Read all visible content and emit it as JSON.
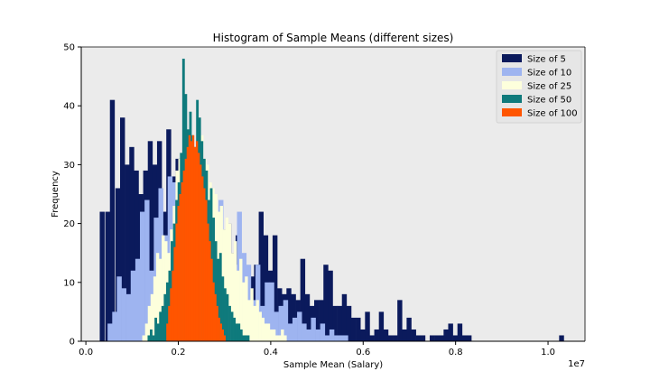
{
  "chart_data": {
    "type": "histogram",
    "title": "Histogram of Sample Means (different sizes)",
    "xlabel": "Sample Mean (Salary)",
    "ylabel": "Frequency",
    "x_offset_label": "1e7",
    "x_scale": 10000000,
    "xlim": [
      -0.01,
      1.08
    ],
    "ylim": [
      0,
      50
    ],
    "x_ticks": [
      0.0,
      0.2,
      0.4,
      0.6,
      0.8,
      1.0
    ],
    "x_tick_labels": [
      "0.0",
      "0.2",
      "0.4",
      "0.6",
      "0.8",
      "1.0"
    ],
    "y_ticks": [
      0,
      10,
      20,
      30,
      40,
      50
    ],
    "y_tick_labels": [
      "0",
      "10",
      "20",
      "30",
      "40",
      "50"
    ],
    "grid": false,
    "legend_position": "top-right",
    "background": "#ebebeb",
    "series": [
      {
        "name": "Size of 5",
        "color": "#0b1a5c",
        "bins": [
          [
            0.035,
            22
          ],
          [
            0.047,
            22
          ],
          [
            0.057,
            41
          ],
          [
            0.069,
            26
          ],
          [
            0.079,
            38
          ],
          [
            0.089,
            30
          ],
          [
            0.099,
            33
          ],
          [
            0.109,
            29
          ],
          [
            0.119,
            25
          ],
          [
            0.129,
            29
          ],
          [
            0.139,
            34
          ],
          [
            0.149,
            30
          ],
          [
            0.159,
            34
          ],
          [
            0.169,
            22
          ],
          [
            0.179,
            36
          ],
          [
            0.189,
            28
          ],
          [
            0.199,
            31
          ],
          [
            0.209,
            22
          ],
          [
            0.219,
            27
          ],
          [
            0.229,
            24
          ],
          [
            0.239,
            25
          ],
          [
            0.249,
            17
          ],
          [
            0.259,
            20
          ],
          [
            0.269,
            22
          ],
          [
            0.279,
            20
          ],
          [
            0.289,
            16
          ],
          [
            0.299,
            19
          ],
          [
            0.309,
            20
          ],
          [
            0.319,
            15
          ],
          [
            0.329,
            18
          ],
          [
            0.339,
            14
          ],
          [
            0.349,
            12
          ],
          [
            0.359,
            11
          ],
          [
            0.369,
            13
          ],
          [
            0.379,
            22
          ],
          [
            0.389,
            18
          ],
          [
            0.399,
            12
          ],
          [
            0.409,
            18
          ],
          [
            0.419,
            9
          ],
          [
            0.429,
            8
          ],
          [
            0.439,
            9
          ],
          [
            0.449,
            8
          ],
          [
            0.459,
            7
          ],
          [
            0.469,
            14
          ],
          [
            0.479,
            8
          ],
          [
            0.489,
            6
          ],
          [
            0.499,
            7
          ],
          [
            0.509,
            7
          ],
          [
            0.519,
            13
          ],
          [
            0.529,
            12
          ],
          [
            0.539,
            6
          ],
          [
            0.549,
            6
          ],
          [
            0.559,
            8
          ],
          [
            0.569,
            6
          ],
          [
            0.579,
            4
          ],
          [
            0.589,
            4
          ],
          [
            0.599,
            2
          ],
          [
            0.609,
            5
          ],
          [
            0.619,
            1
          ],
          [
            0.629,
            2
          ],
          [
            0.639,
            5
          ],
          [
            0.649,
            2
          ],
          [
            0.659,
            1
          ],
          [
            0.669,
            1
          ],
          [
            0.679,
            7
          ],
          [
            0.689,
            2
          ],
          [
            0.699,
            4
          ],
          [
            0.709,
            2
          ],
          [
            0.719,
            1
          ],
          [
            0.729,
            1
          ],
          [
            0.749,
            1
          ],
          [
            0.759,
            1
          ],
          [
            0.769,
            1
          ],
          [
            0.779,
            2
          ],
          [
            0.789,
            3
          ],
          [
            0.799,
            1
          ],
          [
            0.809,
            3
          ],
          [
            0.819,
            1
          ],
          [
            0.829,
            1
          ],
          [
            1.029,
            1
          ]
        ]
      },
      {
        "name": "Size of 10",
        "color": "#9eb4f0",
        "bins": [
          [
            0.052,
            3
          ],
          [
            0.062,
            5
          ],
          [
            0.072,
            11
          ],
          [
            0.082,
            9
          ],
          [
            0.092,
            8
          ],
          [
            0.102,
            12
          ],
          [
            0.112,
            14
          ],
          [
            0.122,
            22
          ],
          [
            0.132,
            24
          ],
          [
            0.142,
            12
          ],
          [
            0.152,
            21
          ],
          [
            0.162,
            26
          ],
          [
            0.172,
            18
          ],
          [
            0.182,
            28
          ],
          [
            0.192,
            27
          ],
          [
            0.202,
            24
          ],
          [
            0.212,
            31
          ],
          [
            0.222,
            27
          ],
          [
            0.232,
            29
          ],
          [
            0.242,
            21
          ],
          [
            0.252,
            26
          ],
          [
            0.262,
            22
          ],
          [
            0.272,
            17
          ],
          [
            0.282,
            20
          ],
          [
            0.292,
            24
          ],
          [
            0.302,
            14
          ],
          [
            0.312,
            12
          ],
          [
            0.322,
            13
          ],
          [
            0.332,
            22
          ],
          [
            0.342,
            15
          ],
          [
            0.352,
            13
          ],
          [
            0.362,
            7
          ],
          [
            0.372,
            13
          ],
          [
            0.382,
            6
          ],
          [
            0.392,
            10
          ],
          [
            0.402,
            10
          ],
          [
            0.412,
            5
          ],
          [
            0.422,
            6
          ],
          [
            0.432,
            7
          ],
          [
            0.442,
            3
          ],
          [
            0.452,
            4
          ],
          [
            0.462,
            5
          ],
          [
            0.472,
            3
          ],
          [
            0.482,
            2
          ],
          [
            0.492,
            4
          ],
          [
            0.502,
            2
          ],
          [
            0.512,
            3
          ],
          [
            0.522,
            1
          ],
          [
            0.532,
            2
          ],
          [
            0.542,
            1
          ],
          [
            0.552,
            1
          ],
          [
            0.562,
            1
          ]
        ]
      },
      {
        "name": "Size of 25",
        "color": "#fdffdc",
        "bins": [
          [
            0.125,
            1
          ],
          [
            0.131,
            3
          ],
          [
            0.137,
            6
          ],
          [
            0.143,
            8
          ],
          [
            0.149,
            11
          ],
          [
            0.155,
            15
          ],
          [
            0.161,
            14
          ],
          [
            0.167,
            18
          ],
          [
            0.173,
            17
          ],
          [
            0.179,
            15
          ],
          [
            0.185,
            19
          ],
          [
            0.191,
            23
          ],
          [
            0.197,
            29
          ],
          [
            0.203,
            31
          ],
          [
            0.209,
            28
          ],
          [
            0.215,
            38
          ],
          [
            0.221,
            36
          ],
          [
            0.227,
            33
          ],
          [
            0.233,
            30
          ],
          [
            0.239,
            29
          ],
          [
            0.245,
            34
          ],
          [
            0.251,
            35
          ],
          [
            0.257,
            31
          ],
          [
            0.263,
            30
          ],
          [
            0.269,
            27
          ],
          [
            0.275,
            26
          ],
          [
            0.281,
            25
          ],
          [
            0.287,
            22
          ],
          [
            0.293,
            23
          ],
          [
            0.299,
            19
          ],
          [
            0.305,
            21
          ],
          [
            0.311,
            20
          ],
          [
            0.317,
            15
          ],
          [
            0.323,
            17
          ],
          [
            0.329,
            12
          ],
          [
            0.335,
            14
          ],
          [
            0.341,
            10
          ],
          [
            0.347,
            11
          ],
          [
            0.353,
            7
          ],
          [
            0.359,
            9
          ],
          [
            0.365,
            6
          ],
          [
            0.371,
            7
          ],
          [
            0.377,
            5
          ],
          [
            0.383,
            4
          ],
          [
            0.389,
            3
          ],
          [
            0.395,
            3
          ],
          [
            0.401,
            2
          ],
          [
            0.407,
            2
          ],
          [
            0.413,
            1
          ],
          [
            0.419,
            1
          ],
          [
            0.425,
            2
          ],
          [
            0.431,
            1
          ]
        ]
      },
      {
        "name": "Size of 50",
        "color": "#0f7a7c",
        "bins": [
          [
            0.136,
            1
          ],
          [
            0.141,
            2
          ],
          [
            0.146,
            1
          ],
          [
            0.151,
            4
          ],
          [
            0.156,
            3
          ],
          [
            0.161,
            5
          ],
          [
            0.166,
            6
          ],
          [
            0.171,
            8
          ],
          [
            0.176,
            10
          ],
          [
            0.181,
            12
          ],
          [
            0.186,
            17
          ],
          [
            0.191,
            20
          ],
          [
            0.196,
            24
          ],
          [
            0.201,
            27
          ],
          [
            0.206,
            32
          ],
          [
            0.211,
            48
          ],
          [
            0.216,
            42
          ],
          [
            0.221,
            36
          ],
          [
            0.226,
            39
          ],
          [
            0.231,
            35
          ],
          [
            0.236,
            33
          ],
          [
            0.241,
            41
          ],
          [
            0.246,
            38
          ],
          [
            0.251,
            34
          ],
          [
            0.256,
            31
          ],
          [
            0.261,
            29
          ],
          [
            0.266,
            24
          ],
          [
            0.271,
            26
          ],
          [
            0.276,
            21
          ],
          [
            0.281,
            17
          ],
          [
            0.286,
            14
          ],
          [
            0.291,
            15
          ],
          [
            0.296,
            11
          ],
          [
            0.301,
            9
          ],
          [
            0.306,
            8
          ],
          [
            0.311,
            6
          ],
          [
            0.316,
            5
          ],
          [
            0.321,
            4
          ],
          [
            0.326,
            3
          ],
          [
            0.331,
            3
          ],
          [
            0.336,
            2
          ],
          [
            0.341,
            1
          ],
          [
            0.346,
            1
          ],
          [
            0.351,
            1
          ]
        ]
      },
      {
        "name": "Size of 100",
        "color": "#ff5500",
        "bins": [
          [
            0.176,
            3
          ],
          [
            0.18,
            6
          ],
          [
            0.184,
            9
          ],
          [
            0.188,
            12
          ],
          [
            0.192,
            16
          ],
          [
            0.196,
            20
          ],
          [
            0.2,
            23
          ],
          [
            0.204,
            25
          ],
          [
            0.208,
            27
          ],
          [
            0.212,
            29
          ],
          [
            0.216,
            31
          ],
          [
            0.22,
            33
          ],
          [
            0.224,
            35
          ],
          [
            0.228,
            34
          ],
          [
            0.232,
            35
          ],
          [
            0.236,
            33
          ],
          [
            0.24,
            34
          ],
          [
            0.244,
            32
          ],
          [
            0.248,
            30
          ],
          [
            0.252,
            28
          ],
          [
            0.256,
            26
          ],
          [
            0.26,
            24
          ],
          [
            0.264,
            20
          ],
          [
            0.268,
            17
          ],
          [
            0.272,
            14
          ],
          [
            0.276,
            10
          ],
          [
            0.28,
            8
          ],
          [
            0.284,
            6
          ],
          [
            0.288,
            4
          ],
          [
            0.292,
            3
          ],
          [
            0.296,
            2
          ],
          [
            0.3,
            1
          ]
        ]
      }
    ]
  }
}
